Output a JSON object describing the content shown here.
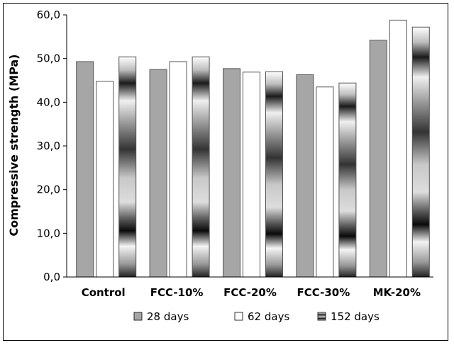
{
  "chart_data": {
    "type": "bar",
    "title": "",
    "xlabel": "",
    "ylabel": "Compressive strength (MPa)",
    "categories": [
      "Control",
      "FCC-10%",
      "FCC-20%",
      "FCC-30%",
      "MK-20%"
    ],
    "series": [
      {
        "name": "28 days",
        "values": [
          49.3,
          47.5,
          47.7,
          46.3,
          54.2
        ],
        "color": "#a6a6a6",
        "fill": "solid-gray"
      },
      {
        "name": "62 days",
        "values": [
          44.8,
          49.3,
          46.9,
          43.5,
          58.8
        ],
        "color": "#ffffff",
        "fill": "white"
      },
      {
        "name": "152 days",
        "values": [
          50.4,
          50.4,
          47.0,
          44.4,
          57.2
        ],
        "color": "#555555",
        "fill": "banded-gradient"
      }
    ],
    "ylim": [
      0,
      60
    ],
    "yticks": [
      "0,0",
      "10,0",
      "20,0",
      "30,0",
      "40,0",
      "50,0",
      "60,0"
    ],
    "grid": false,
    "legend_position": "bottom"
  }
}
